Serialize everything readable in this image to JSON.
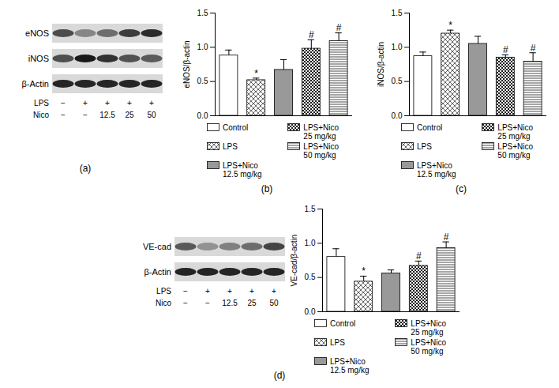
{
  "chart_data": [
    {
      "type": "bar",
      "caption": "(b)",
      "ylabel": "eNOS/β-actin",
      "categories": [
        "Control",
        "LPS",
        "LPS+Nico 12.5 mg/kg",
        "LPS+Nico 25 mg/kg",
        "LPS+Nico 50 mg/kg"
      ],
      "values": [
        0.88,
        0.52,
        0.67,
        0.98,
        1.09
      ],
      "errors": [
        0.08,
        0.03,
        0.15,
        0.13,
        0.12
      ],
      "significance": [
        null,
        "*",
        null,
        "#",
        "#"
      ],
      "colors": [
        "#ffffff",
        "#ffffff",
        "#999999",
        "#ffffff",
        "#ffffff"
      ],
      "ylim": [
        0,
        1.5
      ],
      "yticks": [
        {
          "value": 0,
          "label": "0.0"
        },
        {
          "value": 0.5,
          "label": "0.5"
        },
        {
          "value": 1,
          "label": "1.0"
        },
        {
          "value": 1.5,
          "label": "1.5"
        }
      ],
      "tick_labels": "y",
      "legend": "bottom"
    },
    {
      "type": "bar",
      "caption": "(c)",
      "ylabel": "iNOS/β-actin",
      "categories": [
        "Control",
        "LPS",
        "LPS+Nico 12.5 mg/kg",
        "LPS+Nico 25 mg/kg",
        "LPS+Nico 50 mg/kg"
      ],
      "values": [
        0.87,
        1.2,
        1.05,
        0.85,
        0.79
      ],
      "errors": [
        0.06,
        0.05,
        0.11,
        0.04,
        0.13
      ],
      "significance": [
        null,
        "*",
        null,
        "#",
        "#"
      ],
      "colors": [
        "#ffffff",
        "#ffffff",
        "#999999",
        "#ffffff",
        "#ffffff"
      ],
      "ylim": [
        0,
        1.5
      ],
      "yticks": [
        {
          "value": 0,
          "label": "0.0"
        },
        {
          "value": 0.5,
          "label": "0.5"
        },
        {
          "value": 1,
          "label": "1.0"
        },
        {
          "value": 1.5,
          "label": "1.5"
        }
      ],
      "tick_labels": "y",
      "legend": "bottom"
    },
    {
      "type": "bar",
      "ylabel": "VE-cad/β-actin",
      "categories": [
        "Control",
        "LPS",
        "LPS+Nico 12.5 mg/kg",
        "LPS+Nico 25 mg/kg",
        "LPS+Nico 50 mg/kg"
      ],
      "values": [
        0.8,
        0.44,
        0.56,
        0.67,
        0.93
      ],
      "errors": [
        0.12,
        0.08,
        0.05,
        0.07,
        0.09
      ],
      "significance": [
        null,
        "*",
        null,
        "#",
        "#"
      ],
      "colors": [
        "#ffffff",
        "#ffffff",
        "#999999",
        "#ffffff",
        "#ffffff"
      ],
      "ylim": [
        0,
        1.5
      ],
      "yticks": [
        {
          "value": 0,
          "label": "0.0"
        },
        {
          "value": 0.5,
          "label": "0.5"
        },
        {
          "value": 1,
          "label": "1.0"
        },
        {
          "value": 1.5,
          "label": "1.5"
        }
      ],
      "tick_labels": "y",
      "legend": "bottom"
    }
  ],
  "blots": [
    {
      "caption": "(a)",
      "bands": [
        "eNOS",
        "iNOS",
        "β-Actin"
      ],
      "conditions": [
        {
          "name": "LPS",
          "lanes": [
            "−",
            "+",
            "+",
            "+",
            "+"
          ]
        },
        {
          "name": "Nico",
          "lanes": [
            "−",
            "−",
            "12.5",
            "25",
            "50"
          ]
        }
      ]
    },
    {
      "caption": "(d)",
      "bands": [
        "VE-cad",
        "β-Actin"
      ],
      "conditions": [
        {
          "name": "LPS",
          "lanes": [
            "−",
            "+",
            "+",
            "+",
            "+"
          ]
        },
        {
          "name": "Nico",
          "lanes": [
            "−",
            "−",
            "12.5",
            "25",
            "50"
          ]
        }
      ]
    }
  ]
}
